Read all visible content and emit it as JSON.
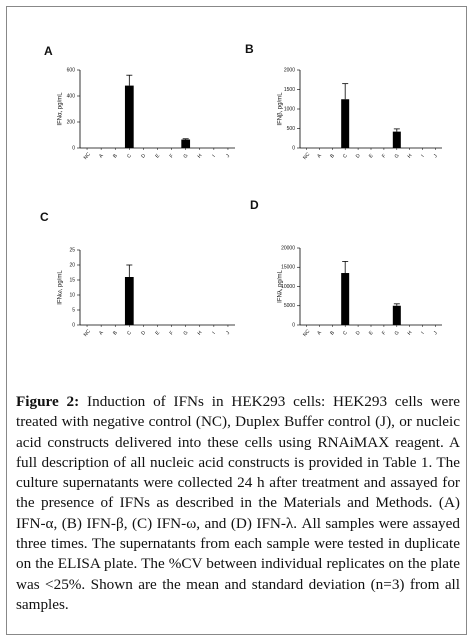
{
  "chart_data": [
    {
      "type": "bar",
      "panel": "A",
      "y_label": "IFNα, pg/mL",
      "categories": [
        "NC",
        "A",
        "B",
        "C",
        "D",
        "E",
        "F",
        "G",
        "H",
        "I",
        "J"
      ],
      "values": [
        0,
        0,
        0,
        480,
        0,
        0,
        0,
        65,
        0,
        0,
        0
      ],
      "errors": [
        null,
        null,
        null,
        80,
        null,
        null,
        null,
        6,
        null,
        null,
        null
      ],
      "color": "#000000",
      "ylim": [
        0,
        600
      ],
      "yticks": [
        0,
        200,
        400,
        600
      ]
    },
    {
      "type": "bar",
      "panel": "B",
      "y_label": "IFNβ, pg/mL",
      "categories": [
        "NC",
        "A",
        "B",
        "C",
        "D",
        "E",
        "F",
        "G",
        "H",
        "I",
        "J"
      ],
      "values": [
        0,
        0,
        0,
        1250,
        0,
        0,
        0,
        420,
        0,
        0,
        0
      ],
      "errors": [
        null,
        null,
        null,
        400,
        null,
        null,
        null,
        70,
        null,
        null,
        null
      ],
      "color": "#000000",
      "ylim": [
        0,
        2000
      ],
      "yticks": [
        0,
        500,
        1000,
        1500,
        2000
      ]
    },
    {
      "type": "bar",
      "panel": "C",
      "y_label": "IFNω, pg/mL",
      "categories": [
        "NC",
        "A",
        "B",
        "C",
        "D",
        "E",
        "F",
        "G",
        "H",
        "I",
        "J"
      ],
      "values": [
        0,
        0,
        0,
        16,
        0,
        0,
        0,
        0,
        0,
        0,
        0
      ],
      "errors": [
        null,
        null,
        null,
        4,
        null,
        null,
        null,
        null,
        null,
        null,
        null
      ],
      "color": "#000000",
      "ylim": [
        0,
        25
      ],
      "yticks": [
        0,
        5,
        10,
        15,
        20,
        25
      ]
    },
    {
      "type": "bar",
      "panel": "D",
      "y_label": "IFNλ, pg/mL",
      "categories": [
        "NC",
        "A",
        "B",
        "C",
        "D",
        "E",
        "F",
        "G",
        "H",
        "I",
        "J"
      ],
      "values": [
        0,
        0,
        0,
        13500,
        0,
        0,
        0,
        5000,
        0,
        0,
        0
      ],
      "errors": [
        null,
        null,
        null,
        3000,
        null,
        null,
        null,
        500,
        null,
        null,
        null
      ],
      "color": "#000000",
      "ylim": [
        0,
        20000
      ],
      "yticks": [
        0,
        5000,
        10000,
        15000,
        20000
      ]
    }
  ],
  "caption": {
    "label": "Figure 2:",
    "text": "Induction of IFNs in HEK293 cells: HEK293 cells were treated with negative control (NC), Duplex Buffer control (J), or nucleic acid constructs delivered into these cells using RNAiMAX reagent. A full description of all nucleic acid constructs is provided in Table 1. The culture supernatants were collected 24 h after treatment and assayed for the presence of IFNs as described in the Materials and Methods. (A) IFN-α, (B) IFN-β, (C) IFN-ω, and (D) IFN-λ. All samples were assayed three times. The supernatants from each sample were tested in duplicate on the ELISA plate. The %CV between individual replicates on the plate was <25%. Shown are the mean and standard deviation (n=3) from all samples."
  }
}
